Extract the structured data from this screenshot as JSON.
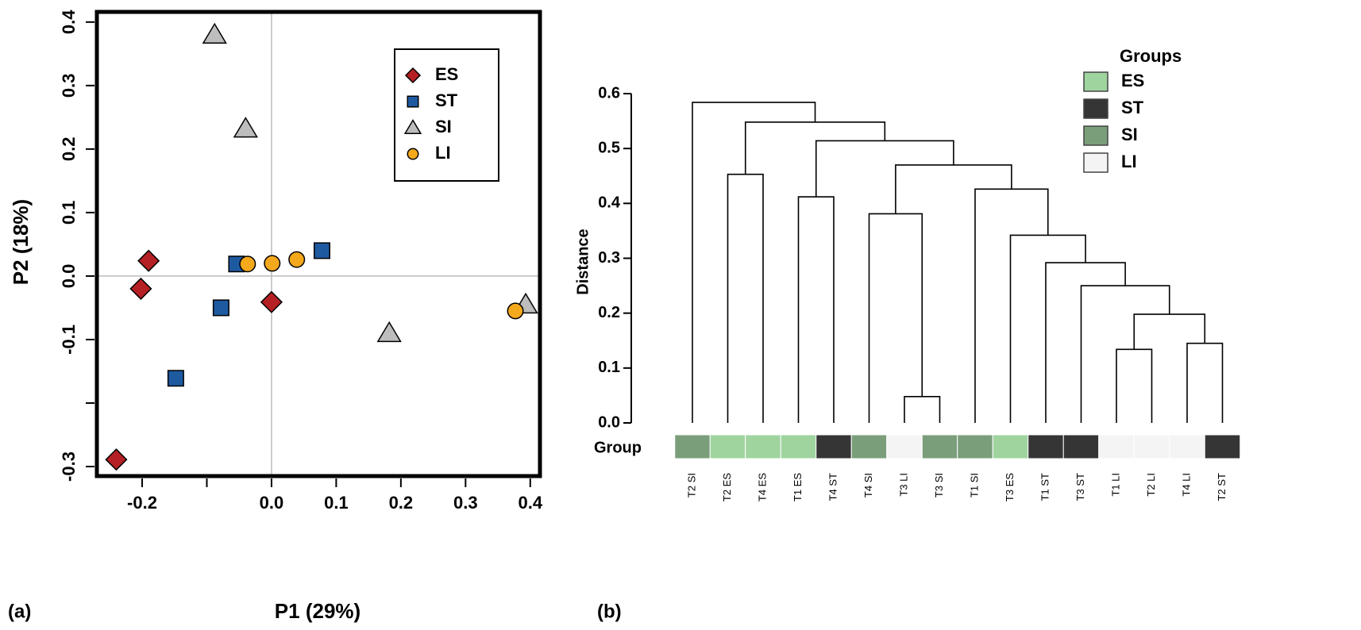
{
  "chart_data": [
    {
      "type": "scatter",
      "panel_label": "(a)",
      "xlabel": "P1 (29%)",
      "ylabel": "P2 (18%)",
      "xlim": [
        -0.27,
        0.415
      ],
      "ylim": [
        -0.315,
        0.416
      ],
      "xticks": [
        -0.2,
        {
          "value": -0.1,
          "label": null
        },
        {
          "value": 0,
          "label": "0.0"
        },
        0.1,
        0.2,
        0.3,
        0.4
      ],
      "yticks": [
        {
          "value": -0.3,
          "label": "-0.3"
        },
        {
          "value": -0.2,
          "label": null
        },
        -0.1,
        {
          "value": 0,
          "label": "0.0"
        },
        0.1,
        0.2,
        0.3,
        0.4
      ],
      "zero_lines": true,
      "legend": "top-right",
      "series": [
        {
          "name": "ES",
          "color": "#b52024",
          "marker": "diamond",
          "x": [
            -0.19,
            -0.202,
            0.0,
            -0.24
          ],
          "values": [
            0.024,
            -0.02,
            -0.041,
            -0.289
          ]
        },
        {
          "name": "ST",
          "color": "#1e5aa0",
          "marker": "square",
          "x": [
            -0.054,
            0.078,
            -0.078,
            -0.148
          ],
          "values": [
            0.019,
            0.04,
            -0.05,
            -0.161
          ]
        },
        {
          "name": "SI",
          "color": "#bdbdbd",
          "marker": "triangle",
          "x": [
            -0.088,
            -0.04,
            0.182,
            0.393
          ],
          "values": [
            0.38,
            0.232,
            -0.09,
            -0.045
          ]
        },
        {
          "name": "LI",
          "color": "#f4a81c",
          "marker": "circle",
          "x": [
            -0.037,
            0.001,
            0.039,
            0.377
          ],
          "values": [
            0.019,
            0.02,
            0.026,
            -0.055
          ]
        }
      ]
    },
    {
      "type": "dendrogram",
      "panel_label": "(b)",
      "ylabel": "Distance",
      "ylim": [
        0,
        0.6
      ],
      "yticks": [
        {
          "value": 0,
          "label": "0.0"
        },
        0.1,
        0.2,
        0.3,
        0.4,
        0.5,
        0.6
      ],
      "group_label": "Group",
      "legend_title": "Groups",
      "groups": [
        {
          "name": "ES",
          "color": "#9fd49f"
        },
        {
          "name": "ST",
          "color": "#353535"
        },
        {
          "name": "SI",
          "color": "#7a9e7a"
        },
        {
          "name": "LI",
          "color": "#f4f4f4"
        }
      ],
      "tree": {
        "height": 0.584,
        "children": [
          {
            "label": "T2 SI",
            "group": "SI"
          },
          {
            "height": 0.548,
            "children": [
              {
                "height": 0.453,
                "children": [
                  {
                    "label": "T2 ES",
                    "group": "ES"
                  },
                  {
                    "label": "T4 ES",
                    "group": "ES"
                  }
                ]
              },
              {
                "height": 0.514,
                "children": [
                  {
                    "height": 0.412,
                    "children": [
                      {
                        "label": "T1 ES",
                        "group": "ES"
                      },
                      {
                        "label": "T4 ST",
                        "group": "ST"
                      }
                    ]
                  },
                  {
                    "height": 0.47,
                    "children": [
                      {
                        "height": 0.381,
                        "children": [
                          {
                            "label": "T4 SI",
                            "group": "SI"
                          },
                          {
                            "height": 0.048,
                            "children": [
                              {
                                "label": "T3 LI",
                                "group": "LI"
                              },
                              {
                                "label": "T3 SI",
                                "group": "SI"
                              }
                            ]
                          }
                        ]
                      },
                      {
                        "height": 0.426,
                        "children": [
                          {
                            "label": "T1 SI",
                            "group": "SI"
                          },
                          {
                            "height": 0.342,
                            "children": [
                              {
                                "label": "T3 ES",
                                "group": "ES"
                              },
                              {
                                "height": 0.292,
                                "children": [
                                  {
                                    "label": "T1 ST",
                                    "group": "ST"
                                  },
                                  {
                                    "height": 0.25,
                                    "children": [
                                      {
                                        "label": "T3 ST",
                                        "group": "ST"
                                      },
                                      {
                                        "height": 0.198,
                                        "children": [
                                          {
                                            "height": 0.134,
                                            "children": [
                                              {
                                                "label": "T1 LI",
                                                "group": "LI"
                                              },
                                              {
                                                "label": "T2 LI",
                                                "group": "LI"
                                              }
                                            ]
                                          },
                                          {
                                            "height": 0.145,
                                            "children": [
                                              {
                                                "label": "T4 LI",
                                                "group": "LI"
                                              },
                                              {
                                                "label": "T2 ST",
                                                "group": "ST"
                                              }
                                            ]
                                          }
                                        ]
                                      }
                                    ]
                                  }
                                ]
                              }
                            ]
                          }
                        ]
                      }
                    ]
                  }
                ]
              }
            ]
          }
        ]
      }
    }
  ]
}
